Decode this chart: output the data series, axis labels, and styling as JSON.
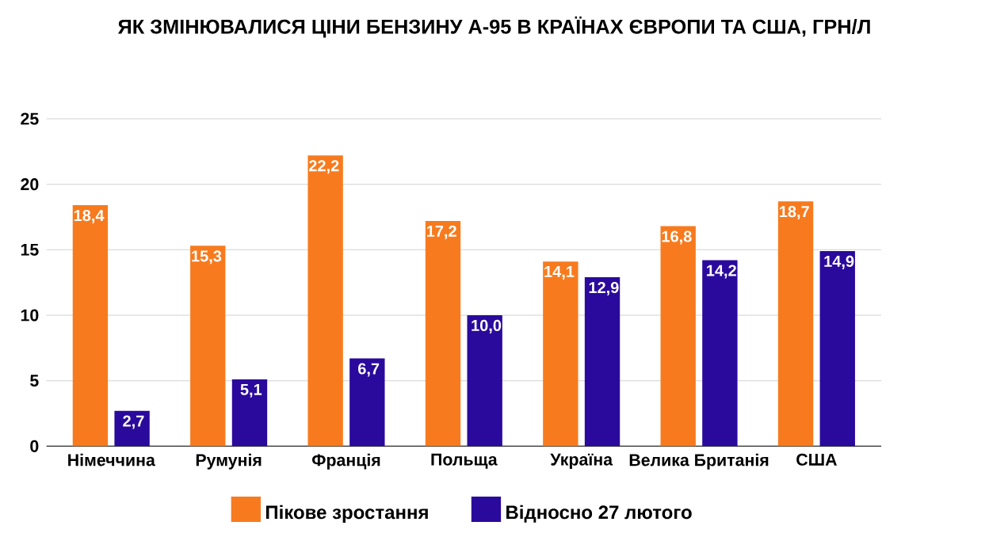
{
  "chart_data": {
    "type": "bar",
    "title": "ЯК ЗМІНЮВАЛИСЯ ЦІНИ БЕНЗИНУ А-95 В КРАЇНАХ ЄВРОПИ ТА США, ГРН/Л",
    "categories": [
      "Німеччина",
      "Румунія",
      "Франція",
      "Польща",
      "Україна",
      "Велика Британія",
      "США"
    ],
    "series": [
      {
        "name": "Пікове зростання",
        "color": "#f77b1e",
        "values": [
          18.4,
          15.3,
          22.2,
          17.2,
          14.1,
          16.8,
          18.7
        ],
        "value_labels": [
          "18,4",
          "15,3",
          "22,2",
          "17,2",
          "14,1",
          "16,8",
          "18,7"
        ]
      },
      {
        "name": "Відносно 27 лютого",
        "color": "#2a0a9c",
        "values": [
          2.7,
          5.1,
          6.7,
          10.0,
          12.9,
          14.2,
          14.9
        ],
        "value_labels": [
          "2,7",
          "5,1",
          "6,7",
          "10,0",
          "12,9",
          "14,2",
          "14,9"
        ]
      }
    ],
    "ylim": [
      0,
      25
    ],
    "yticks": [
      0,
      5,
      10,
      15,
      20,
      25
    ],
    "grid": "y",
    "legend": "bottom"
  }
}
